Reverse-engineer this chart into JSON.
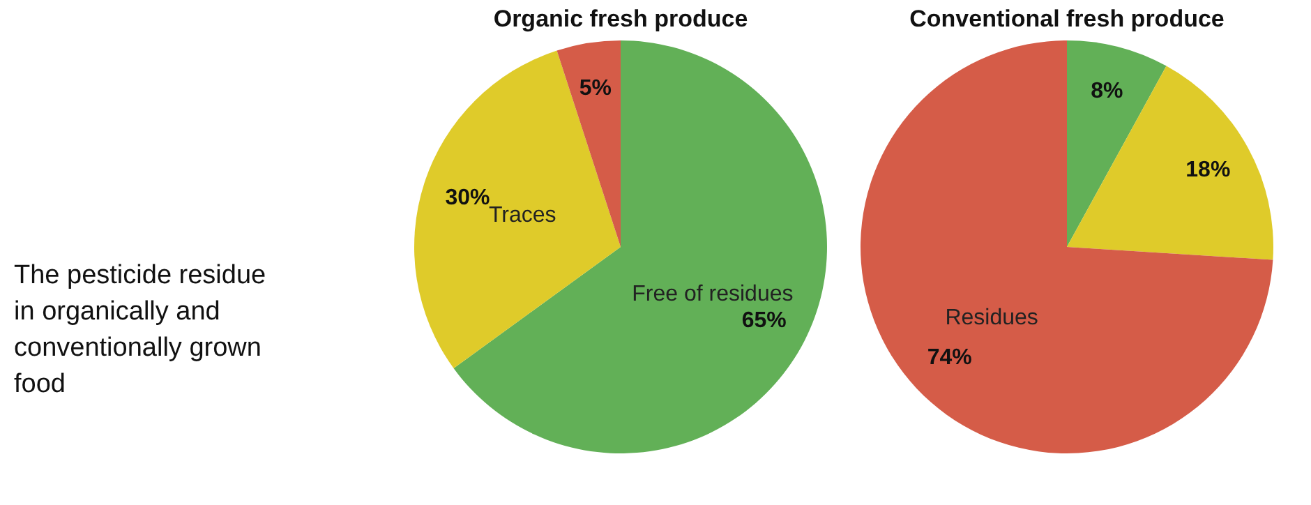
{
  "chart_data": [
    {
      "type": "other",
      "annotations": [
        "The pesticide residue in organically and conventionally grown food"
      ]
    },
    {
      "type": "pie",
      "title": "Organic fresh produce",
      "categories": [
        "Free of residues",
        "Traces",
        null
      ],
      "values": [
        65,
        30,
        5
      ],
      "colors": [
        "#62b057",
        "#dfcb2a",
        "#d55c48"
      ],
      "value_labels": [
        "65%",
        "30%",
        "5%"
      ]
    },
    {
      "type": "pie",
      "title": "Conventional fresh produce",
      "categories": [
        null,
        null,
        "Residues"
      ],
      "values": [
        8,
        18,
        74
      ],
      "colors": [
        "#62b057",
        "#dfcb2a",
        "#d55c48"
      ],
      "value_labels": [
        "8%",
        "18%",
        "74%"
      ]
    }
  ]
}
